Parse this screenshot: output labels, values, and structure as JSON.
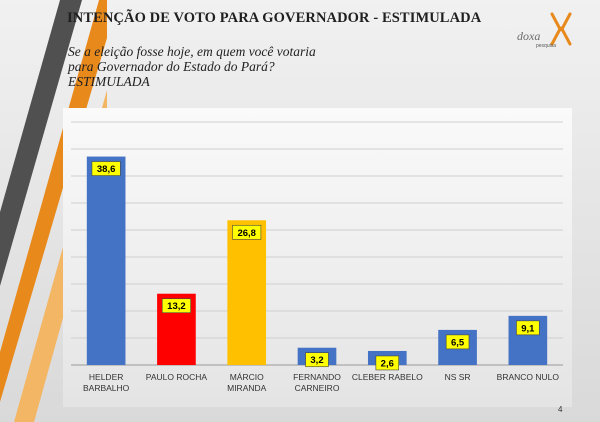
{
  "slide": {
    "title": "INTENÇÃO DE VOTO PARA GOVERNADOR - ESTIMULADA",
    "question": "Se a eleição fosse hoje, em quem você votaria para Governador do Estado do Pará? ESTIMULADA",
    "page_number": "4"
  },
  "logo": {
    "brand": "doxa",
    "tagline": "pesquisa",
    "colors": {
      "orange": "#e8891c",
      "gray": "#6b6b6b"
    }
  },
  "decor": {
    "stripe_colors": [
      "#505050",
      "#e8891c",
      "#f3b664"
    ]
  },
  "chart_data": {
    "type": "bar",
    "title": "",
    "xlabel": "",
    "ylabel": "",
    "categories": [
      [
        "HELDER",
        "BARBALHO"
      ],
      [
        "PAULO ROCHA"
      ],
      [
        "MÁRCIO",
        "MIRANDA"
      ],
      [
        "FERNANDO",
        "CARNEIRO"
      ],
      [
        "CLEBER RABELO"
      ],
      [
        "NS SR"
      ],
      [
        "BRANCO NULO"
      ]
    ],
    "values": [
      38.6,
      13.2,
      26.8,
      3.2,
      2.6,
      6.5,
      9.1
    ],
    "value_labels": [
      "38,6",
      "13,2",
      "26,8",
      "3,2",
      "2,6",
      "6,5",
      "9,1"
    ],
    "bar_colors": [
      "#4472c4",
      "#ff0000",
      "#ffc000",
      "#4472c4",
      "#4472c4",
      "#4472c4",
      "#4472c4"
    ],
    "data_label_background": "#ffff00",
    "ylim": [
      0,
      45
    ],
    "grid": true,
    "legend": "none"
  }
}
